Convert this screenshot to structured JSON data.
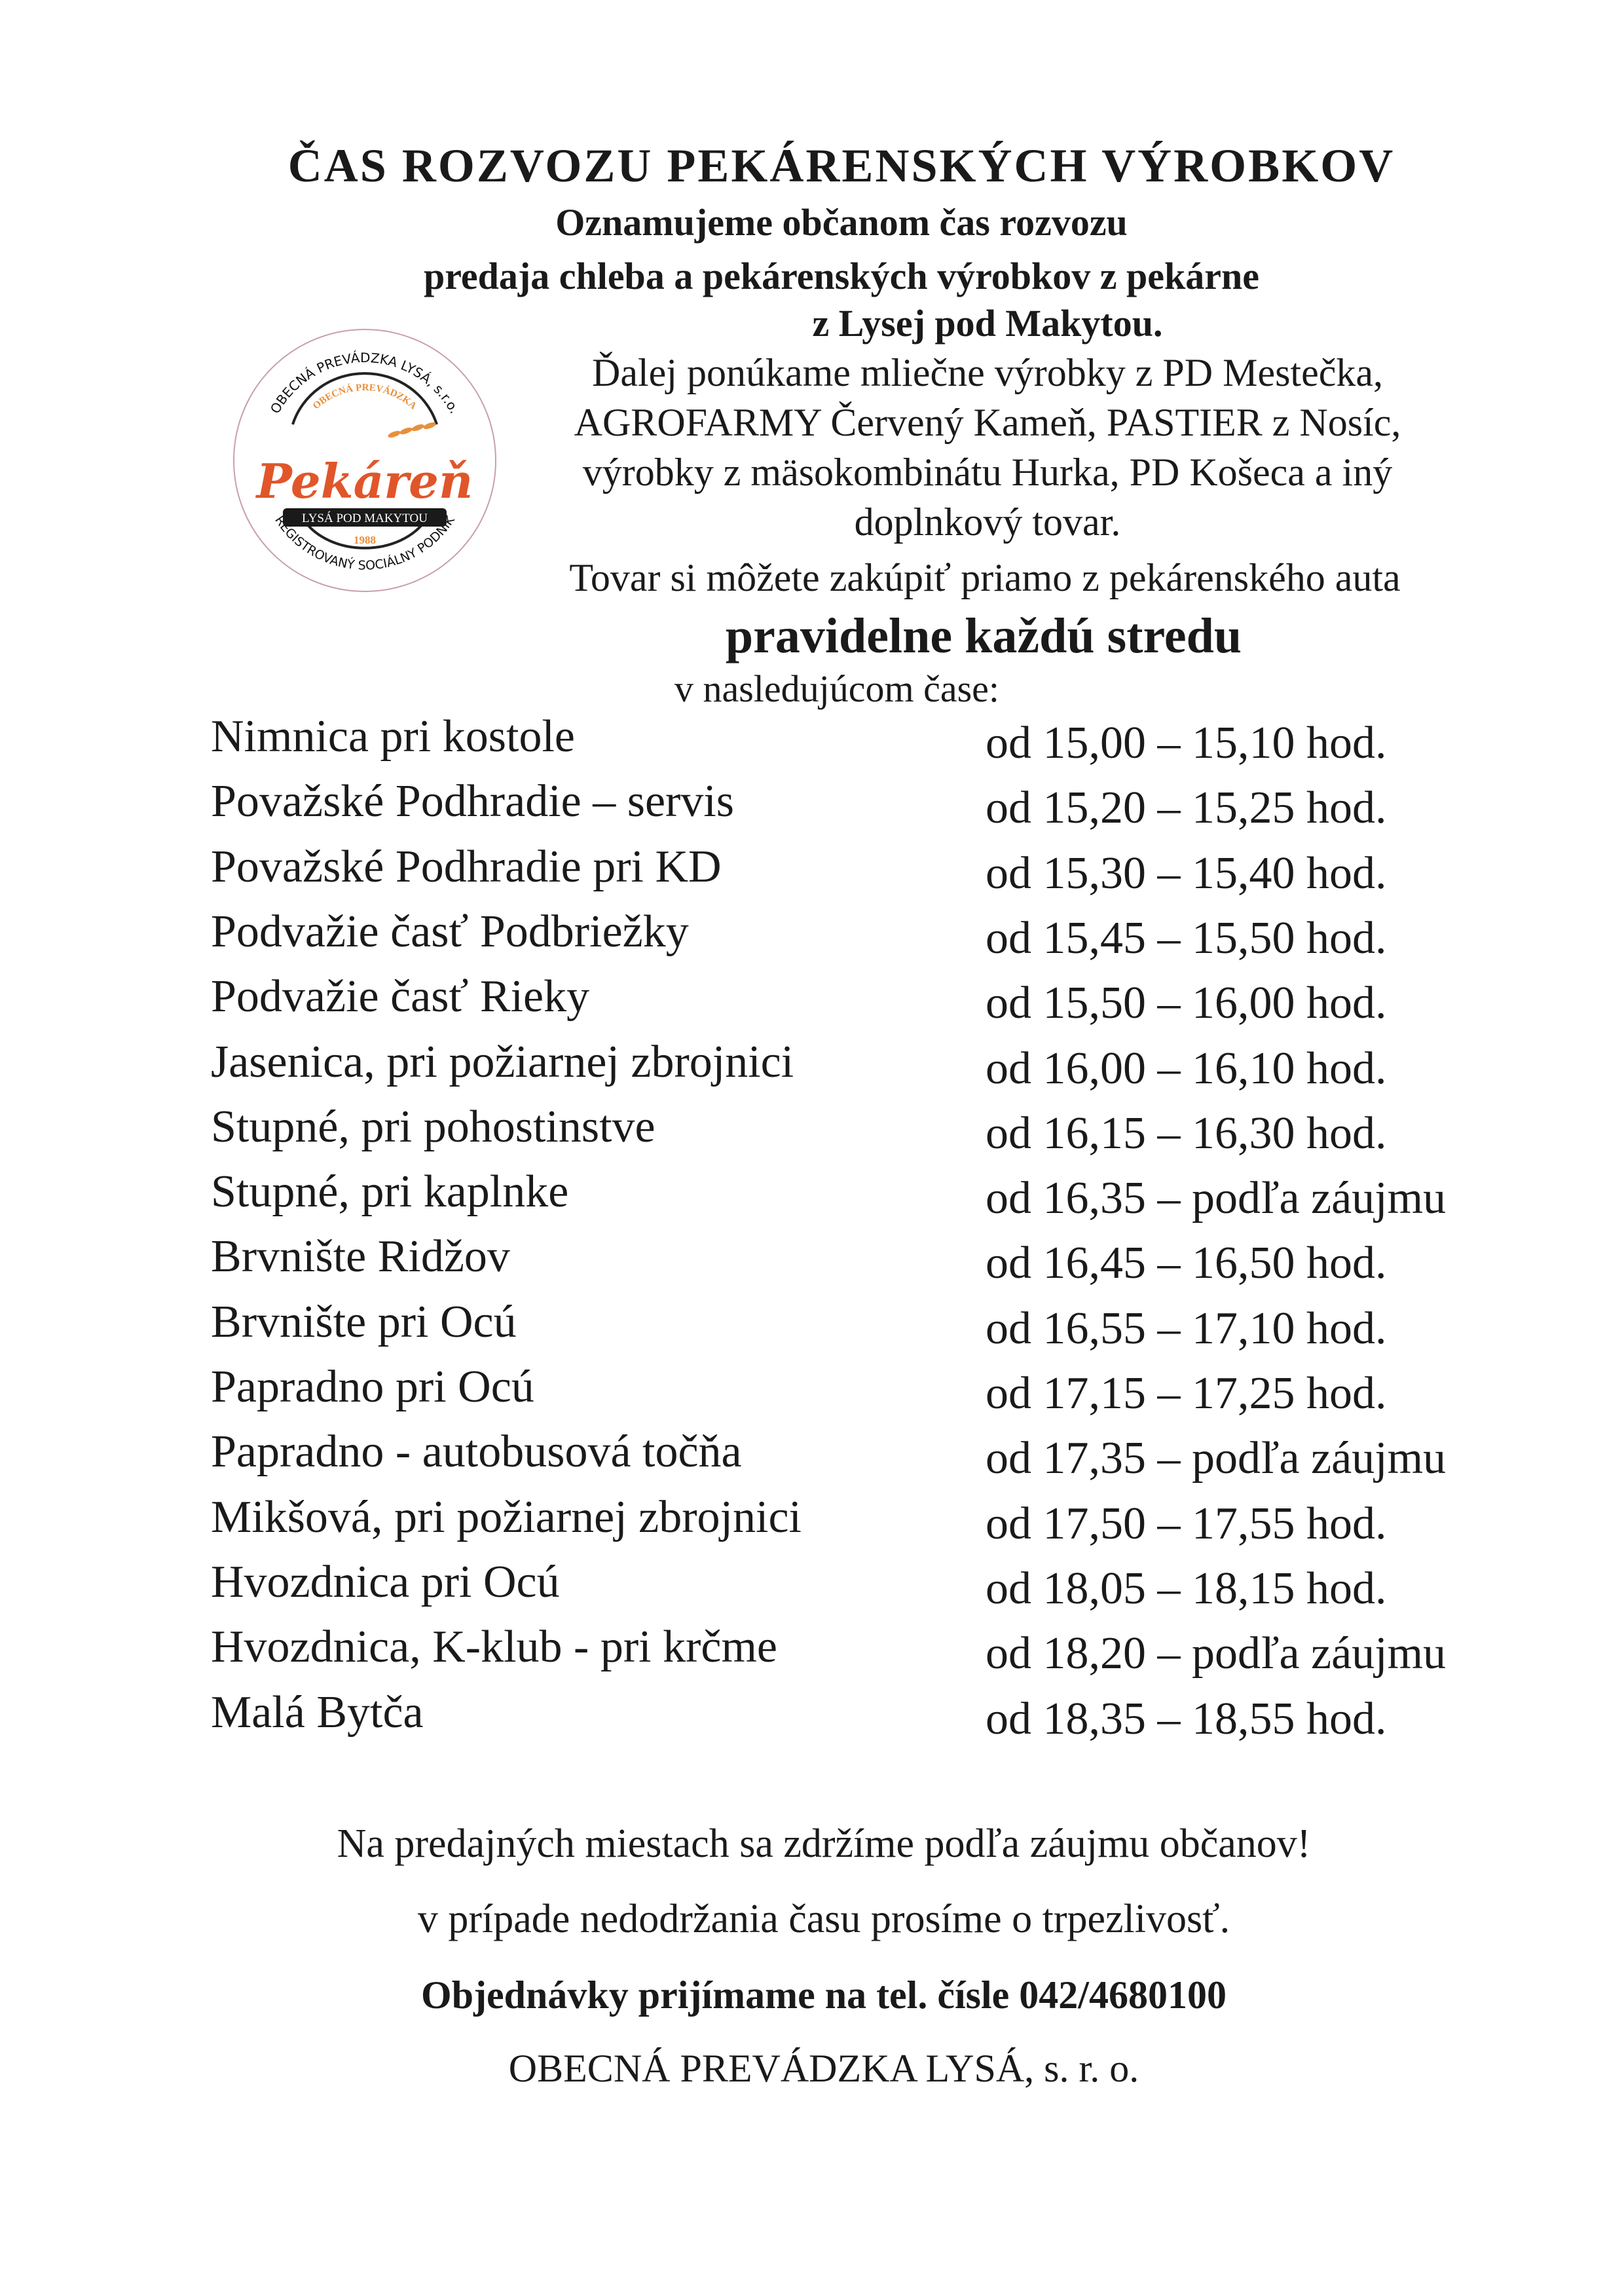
{
  "header": {
    "title": "ČAS ROZVOZU PEKÁRENSKÝCH VÝROBKOV",
    "line1": "Oznamujeme občanom čas rozvozu",
    "line2": "predaja chleba a  pekárenských výrobkov z  pekárne",
    "line3": "z Lysej pod Makytou."
  },
  "intro": {
    "lines": [
      "Ďalej ponúkame mliečne výrobky z PD Mestečka,",
      "AGROFARMY Červený Kameň, PASTIER z Nosíc,",
      "výrobky z mäsokombinátu Hurka, PD Košeca a iný",
      "doplnkový tovar.",
      "Tovar si môžete zakúpiť priamo z pekárenského auta"
    ],
    "emphasis": "pravidelne každú stredu",
    "subhead": "v nasledujúcom čase:"
  },
  "logo": {
    "outer_top": "OBECNÁ PREVÁDZKA LYSÁ, s.r.o.",
    "inner_top": "OBECNÁ PREVÁDZKA",
    "brand": "Pekáreň",
    "banner": "LYSÁ POD MAKYTOU",
    "year": "1988",
    "outer_bottom": "REGISTROVANÝ SOCIÁLNY PODNIK",
    "colors": {
      "brand": "#e0562a",
      "accent": "#e8903a",
      "ring": "#c9a0a8"
    }
  },
  "schedule": [
    {
      "place": "Nimnica pri kostole",
      "time": "od 15,00 – 15,10 hod."
    },
    {
      "place": "Považské Podhradie – servis",
      "time": "od 15,20 – 15,25 hod."
    },
    {
      "place": "Považské Podhradie pri KD",
      "time": "od 15,30 – 15,40 hod."
    },
    {
      "place": "Podvažie časť Podbriežky",
      "time": "od 15,45 – 15,50 hod."
    },
    {
      "place": "Podvažie časť Rieky",
      "time": "od 15,50 – 16,00 hod."
    },
    {
      "place": "Jasenica, pri požiarnej zbrojnici",
      "time": "od 16,00 – 16,10 hod."
    },
    {
      "place": "Stupné, pri pohostinstve",
      "time": "od 16,15 – 16,30 hod."
    },
    {
      "place": "Stupné, pri kaplnke",
      "time": "od 16,35 – podľa záujmu"
    },
    {
      "place": "Brvnište Ridžov",
      "time": "od 16,45 – 16,50 hod."
    },
    {
      "place": "Brvnište pri Ocú",
      "time": "od 16,55 – 17,10 hod."
    },
    {
      "place": "Papradno pri Ocú",
      "time": "od 17,15 – 17,25 hod."
    },
    {
      "place": "Papradno - autobusová točňa",
      "time": "od 17,35 – podľa záujmu"
    },
    {
      "place": "Mikšová, pri požiarnej zbrojnici",
      "time": "od 17,50 – 17,55 hod."
    },
    {
      "place": "Hvozdnica pri Ocú",
      "time": "od 18,05 – 18,15 hod."
    },
    {
      "place": "Hvozdnica, K-klub - pri krčme",
      "time": "od 18,20 – podľa záujmu"
    },
    {
      "place": "Malá Bytča",
      "time": "od 18,35 – 18,55 hod."
    }
  ],
  "footer": {
    "note1": "Na predajných miestach sa zdržíme podľa záujmu občanov!",
    "note2": "v prípade nedodržania času prosíme o trpezlivosť.",
    "orders": "Objednávky prijímame na tel. čísle 042/4680100",
    "company": "OBECNÁ PREVÁDZKA LYSÁ, s. r. o."
  }
}
